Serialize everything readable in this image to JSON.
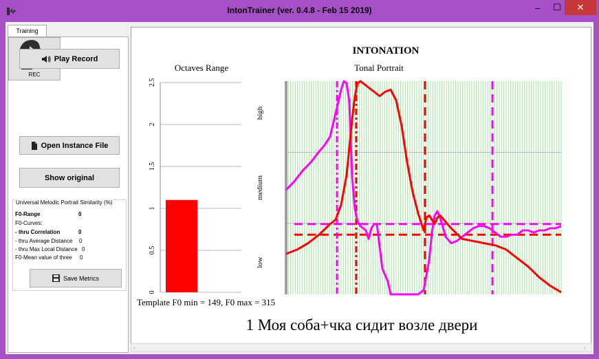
{
  "window": {
    "title": "IntonTrainer (ver. 0.4.8 - Feb 15 2019)",
    "controls": {
      "minimize": "–",
      "maximize": "☐",
      "close": "✕"
    }
  },
  "tabs": [
    {
      "label": "Training"
    }
  ],
  "left_panel": {
    "play_button": "Play Record",
    "rec_label": "REC",
    "open_button": "Open Instance File",
    "show_button": "Show original",
    "metrics": {
      "title": "Universal Melodic Portrait Similarity (%)",
      "f0_range_label": "F0-Range",
      "f0_range_value": "0",
      "f0_curves_label": "F0-Curves:",
      "correlation_label": "- thru Correlation",
      "correlation_value": "0",
      "avg_distance_label": "- thru Average Distance",
      "avg_distance_value": "0",
      "max_local_label": "- thru Max Local Distance",
      "max_local_value": "0",
      "mean_label": "F0-Mean value of three",
      "mean_value": "0",
      "save_button": "Save Metrics"
    }
  },
  "main": {
    "title": "INTONATION",
    "octaves_title": "Octaves Range",
    "tonal_title": "Tonal Portrait",
    "f0_stats": "Template F0 min = 149, F0 max = 315",
    "phrase": "1 Моя соба+чка сидит возле двери",
    "zone_labels": [
      "high",
      "medium",
      "low"
    ]
  },
  "chart_data": [
    {
      "type": "bar",
      "title": "Octaves Range",
      "categories": [
        ""
      ],
      "values": [
        1.1
      ],
      "ylim": [
        0,
        2.5
      ],
      "yticks": [
        "0",
        "0.5",
        "1",
        "1.5",
        "2",
        "2.5"
      ],
      "color": "#ff0000"
    },
    {
      "type": "line",
      "title": "Tonal Portrait",
      "xlim": [
        0,
        100
      ],
      "ylim": [
        0,
        100
      ],
      "grid": true,
      "zones": [
        "low",
        "medium",
        "high"
      ],
      "series": [
        {
          "color": "#ff00ff",
          "x": [
            0,
            3,
            6,
            9,
            12,
            14,
            16,
            18,
            20,
            21,
            22,
            23,
            24,
            25,
            26,
            27,
            28,
            29,
            30,
            31,
            32,
            33,
            35,
            37,
            38,
            40,
            42,
            44,
            46,
            48,
            50,
            52,
            53,
            54,
            55,
            56,
            58,
            60,
            62,
            64,
            66,
            68,
            70,
            72,
            74,
            76,
            78,
            80,
            82,
            84,
            86,
            88,
            90,
            92,
            94,
            96,
            98,
            100
          ],
          "y": [
            49,
            53,
            58,
            62,
            67,
            70,
            74,
            85,
            96,
            100,
            99,
            90,
            55,
            40,
            34,
            32,
            31,
            30,
            26,
            31,
            33,
            33,
            12,
            6,
            0,
            0,
            0,
            0,
            0,
            0,
            2,
            16,
            29,
            37,
            39,
            36,
            27,
            24,
            25,
            27,
            29,
            31,
            32,
            32,
            31,
            29,
            27,
            27,
            28,
            28,
            30,
            30,
            29,
            30,
            30,
            31,
            31,
            32
          ]
        },
        {
          "color": "#ff0000",
          "x": [
            0,
            4,
            8,
            12,
            16,
            18,
            20,
            22,
            24,
            25,
            26,
            27,
            28,
            30,
            32,
            34,
            36,
            38,
            40,
            42,
            44,
            46,
            48,
            50,
            51,
            52,
            53,
            54,
            55,
            56,
            58,
            60,
            64,
            68,
            72,
            76,
            80,
            84,
            88,
            92,
            96,
            100
          ],
          "y": [
            19,
            21,
            24,
            28,
            33,
            35,
            42,
            56,
            82,
            93,
            99,
            100,
            99,
            97,
            95,
            93,
            95,
            96,
            91,
            79,
            62,
            48,
            38,
            30,
            36,
            37,
            35,
            33,
            36,
            37,
            34,
            31,
            26,
            25,
            24,
            23,
            21,
            17,
            13,
            8,
            4,
            1
          ]
        }
      ],
      "reference_lines": [
        {
          "color": "#ff00ff",
          "orientation": "horizontal",
          "y": 33,
          "style": "dashed"
        },
        {
          "color": "#ff0000",
          "orientation": "horizontal",
          "y": 28,
          "style": "dashed"
        },
        {
          "color": "#ff00ff",
          "orientation": "vertical",
          "x": 18.5,
          "style": "dashdot"
        },
        {
          "color": "#ff0000",
          "orientation": "vertical",
          "x": 25.5,
          "style": "dashdot"
        },
        {
          "color": "#ff0000",
          "orientation": "vertical",
          "x": 50.5,
          "style": "dashed"
        },
        {
          "color": "#ff00ff",
          "orientation": "vertical",
          "x": 75,
          "style": "dashed"
        }
      ]
    }
  ]
}
